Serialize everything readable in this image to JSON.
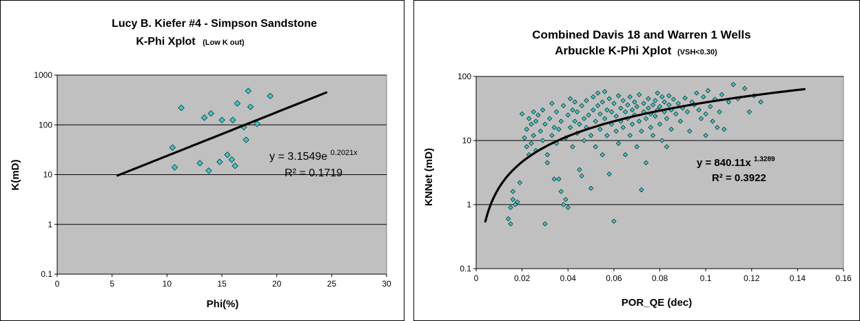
{
  "colors": {
    "plot_bg": "#c0c0c0",
    "marker": "#33cccc",
    "trend": "#000000",
    "grid": "#000000"
  },
  "chart_data": [
    {
      "type": "scatter",
      "title": "Lucy B. Kiefer #4  - Simpson Sandstone",
      "subtitle_main": "K-Phi Xplot",
      "subtitle_note": "(Low K out)",
      "xlabel": "Phi(%)",
      "ylabel": "K(mD)",
      "xlim": [
        0,
        30
      ],
      "ylim": [
        0.1,
        1000
      ],
      "y_scale": "log",
      "grid": "horizontal",
      "x_ticks": [
        0,
        5,
        10,
        15,
        20,
        25,
        30
      ],
      "y_ticks": [
        0.1,
        1,
        10,
        100,
        1000
      ],
      "x_tick_labels": [
        "0",
        "5",
        "10",
        "15",
        "20",
        "25",
        "30"
      ],
      "y_tick_labels": [
        "0.1",
        "1",
        "10",
        "100",
        "1000"
      ],
      "equation_main": "y = 3.1549e",
      "equation_exp": "0.2021x",
      "r2": "R² = 0.1719",
      "trendline": {
        "type": "exponential",
        "a": 3.1549,
        "b": 0.2021,
        "x_range": [
          5.5,
          24.5
        ]
      },
      "points": [
        [
          10.5,
          35
        ],
        [
          10.7,
          14
        ],
        [
          11.3,
          220
        ],
        [
          13.0,
          17
        ],
        [
          13.4,
          140
        ],
        [
          13.8,
          12
        ],
        [
          14.0,
          170
        ],
        [
          14.8,
          18
        ],
        [
          15.0,
          125
        ],
        [
          15.5,
          25
        ],
        [
          15.9,
          20
        ],
        [
          16.0,
          125
        ],
        [
          16.2,
          15
        ],
        [
          16.4,
          270
        ],
        [
          17.0,
          90
        ],
        [
          17.2,
          50
        ],
        [
          17.4,
          480
        ],
        [
          17.6,
          230
        ],
        [
          18.2,
          105
        ],
        [
          19.4,
          380
        ]
      ]
    },
    {
      "type": "scatter",
      "title": "Combined Davis 18 and Warren 1 Wells",
      "subtitle_main": "Arbuckle K-Phi Xplot",
      "subtitle_note": "(VSH<0.30)",
      "xlabel": "POR_QE (dec)",
      "ylabel": "KNNet (mD)",
      "xlim": [
        0,
        0.16
      ],
      "ylim": [
        0.1,
        100
      ],
      "y_scale": "log",
      "grid": "horizontal",
      "x_ticks": [
        0,
        0.02,
        0.04,
        0.06,
        0.08,
        0.1,
        0.12,
        0.14,
        0.16
      ],
      "y_ticks": [
        0.1,
        1,
        10,
        100
      ],
      "x_tick_labels": [
        "0",
        "0.02",
        "0.04",
        "0.06",
        "0.08",
        "0.1",
        "0.12",
        "0.14",
        "0.16"
      ],
      "y_tick_labels": [
        "0.1",
        "1",
        "10",
        "100"
      ],
      "equation_main": "y = 840.11x",
      "equation_exp": "1.3289",
      "r2": "R² = 0.3922",
      "trendline": {
        "type": "power",
        "a": 840.11,
        "b": 1.3289,
        "x_range": [
          0.004,
          0.143
        ]
      },
      "points": [
        [
          0.014,
          0.6
        ],
        [
          0.015,
          0.5
        ],
        [
          0.015,
          0.9
        ],
        [
          0.016,
          1.2
        ],
        [
          0.016,
          1.6
        ],
        [
          0.017,
          1.0
        ],
        [
          0.018,
          1.1
        ],
        [
          0.019,
          2.2
        ],
        [
          0.02,
          26
        ],
        [
          0.021,
          11
        ],
        [
          0.022,
          8
        ],
        [
          0.022,
          15
        ],
        [
          0.023,
          22
        ],
        [
          0.023,
          6
        ],
        [
          0.024,
          18
        ],
        [
          0.024,
          9
        ],
        [
          0.025,
          28
        ],
        [
          0.025,
          12
        ],
        [
          0.026,
          7
        ],
        [
          0.026,
          20
        ],
        [
          0.027,
          25
        ],
        [
          0.028,
          14
        ],
        [
          0.029,
          10
        ],
        [
          0.029,
          30
        ],
        [
          0.03,
          18
        ],
        [
          0.03,
          0.5
        ],
        [
          0.031,
          6
        ],
        [
          0.031,
          4.5
        ],
        [
          0.032,
          22
        ],
        [
          0.033,
          12
        ],
        [
          0.033,
          38
        ],
        [
          0.034,
          16
        ],
        [
          0.034,
          2.5
        ],
        [
          0.035,
          9
        ],
        [
          0.035,
          28
        ],
        [
          0.036,
          2.5
        ],
        [
          0.036,
          15
        ],
        [
          0.037,
          1.6
        ],
        [
          0.037,
          20
        ],
        [
          0.038,
          1.0
        ],
        [
          0.038,
          35
        ],
        [
          0.039,
          11
        ],
        [
          0.039,
          1.2
        ],
        [
          0.04,
          25
        ],
        [
          0.04,
          0.9
        ],
        [
          0.041,
          45
        ],
        [
          0.041,
          16
        ],
        [
          0.042,
          30
        ],
        [
          0.042,
          8
        ],
        [
          0.043,
          20
        ],
        [
          0.043,
          40
        ],
        [
          0.044,
          13
        ],
        [
          0.044,
          28
        ],
        [
          0.045,
          3.5
        ],
        [
          0.045,
          18
        ],
        [
          0.046,
          2.8
        ],
        [
          0.046,
          35
        ],
        [
          0.047,
          22
        ],
        [
          0.047,
          10
        ],
        [
          0.048,
          42
        ],
        [
          0.048,
          16
        ],
        [
          0.049,
          25
        ],
        [
          0.05,
          1.8
        ],
        [
          0.05,
          12
        ],
        [
          0.051,
          30
        ],
        [
          0.051,
          48
        ],
        [
          0.052,
          20
        ],
        [
          0.052,
          8
        ],
        [
          0.053,
          35
        ],
        [
          0.053,
          55
        ],
        [
          0.054,
          15
        ],
        [
          0.054,
          26
        ],
        [
          0.055,
          6
        ],
        [
          0.055,
          40
        ],
        [
          0.056,
          22
        ],
        [
          0.056,
          58
        ],
        [
          0.057,
          12
        ],
        [
          0.057,
          30
        ],
        [
          0.058,
          3
        ],
        [
          0.058,
          45
        ],
        [
          0.059,
          18
        ],
        [
          0.059,
          28
        ],
        [
          0.06,
          0.55
        ],
        [
          0.06,
          38
        ],
        [
          0.061,
          14
        ],
        [
          0.061,
          24
        ],
        [
          0.062,
          50
        ],
        [
          0.062,
          9
        ],
        [
          0.063,
          32
        ],
        [
          0.063,
          20
        ],
        [
          0.064,
          42
        ],
        [
          0.064,
          16
        ],
        [
          0.065,
          6
        ],
        [
          0.065,
          28
        ],
        [
          0.066,
          36
        ],
        [
          0.066,
          22
        ],
        [
          0.067,
          48
        ],
        [
          0.067,
          12
        ],
        [
          0.068,
          30
        ],
        [
          0.068,
          18
        ],
        [
          0.069,
          40
        ],
        [
          0.069,
          25
        ],
        [
          0.07,
          8
        ],
        [
          0.07,
          34
        ],
        [
          0.071,
          20
        ],
        [
          0.071,
          52
        ],
        [
          0.072,
          1.7
        ],
        [
          0.072,
          14
        ],
        [
          0.073,
          28
        ],
        [
          0.073,
          38
        ],
        [
          0.074,
          22
        ],
        [
          0.074,
          4.5
        ],
        [
          0.075,
          32
        ],
        [
          0.075,
          45
        ],
        [
          0.076,
          16
        ],
        [
          0.076,
          26
        ],
        [
          0.077,
          36
        ],
        [
          0.077,
          12
        ],
        [
          0.078,
          42
        ],
        [
          0.078,
          24
        ],
        [
          0.079,
          30
        ],
        [
          0.079,
          55
        ],
        [
          0.08,
          18
        ],
        [
          0.08,
          34
        ],
        [
          0.081,
          48
        ],
        [
          0.081,
          10
        ],
        [
          0.082,
          28
        ],
        [
          0.082,
          40
        ],
        [
          0.083,
          22
        ],
        [
          0.083,
          8
        ],
        [
          0.084,
          36
        ],
        [
          0.084,
          50
        ],
        [
          0.085,
          30
        ],
        [
          0.085,
          15
        ],
        [
          0.086,
          44
        ],
        [
          0.087,
          26
        ],
        [
          0.088,
          38
        ],
        [
          0.089,
          20
        ],
        [
          0.09,
          32
        ],
        [
          0.091,
          46
        ],
        [
          0.092,
          28
        ],
        [
          0.093,
          14
        ],
        [
          0.094,
          40
        ],
        [
          0.095,
          36
        ],
        [
          0.096,
          55
        ],
        [
          0.097,
          30
        ],
        [
          0.098,
          22
        ],
        [
          0.099,
          48
        ],
        [
          0.1,
          26
        ],
        [
          0.1,
          12
        ],
        [
          0.101,
          60
        ],
        [
          0.102,
          34
        ],
        [
          0.103,
          20
        ],
        [
          0.104,
          44
        ],
        [
          0.105,
          16
        ],
        [
          0.106,
          28
        ],
        [
          0.107,
          52
        ],
        [
          0.108,
          15
        ],
        [
          0.11,
          40
        ],
        [
          0.112,
          75
        ],
        [
          0.114,
          45
        ],
        [
          0.117,
          65
        ],
        [
          0.119,
          28
        ],
        [
          0.121,
          50
        ],
        [
          0.124,
          40
        ]
      ]
    }
  ]
}
